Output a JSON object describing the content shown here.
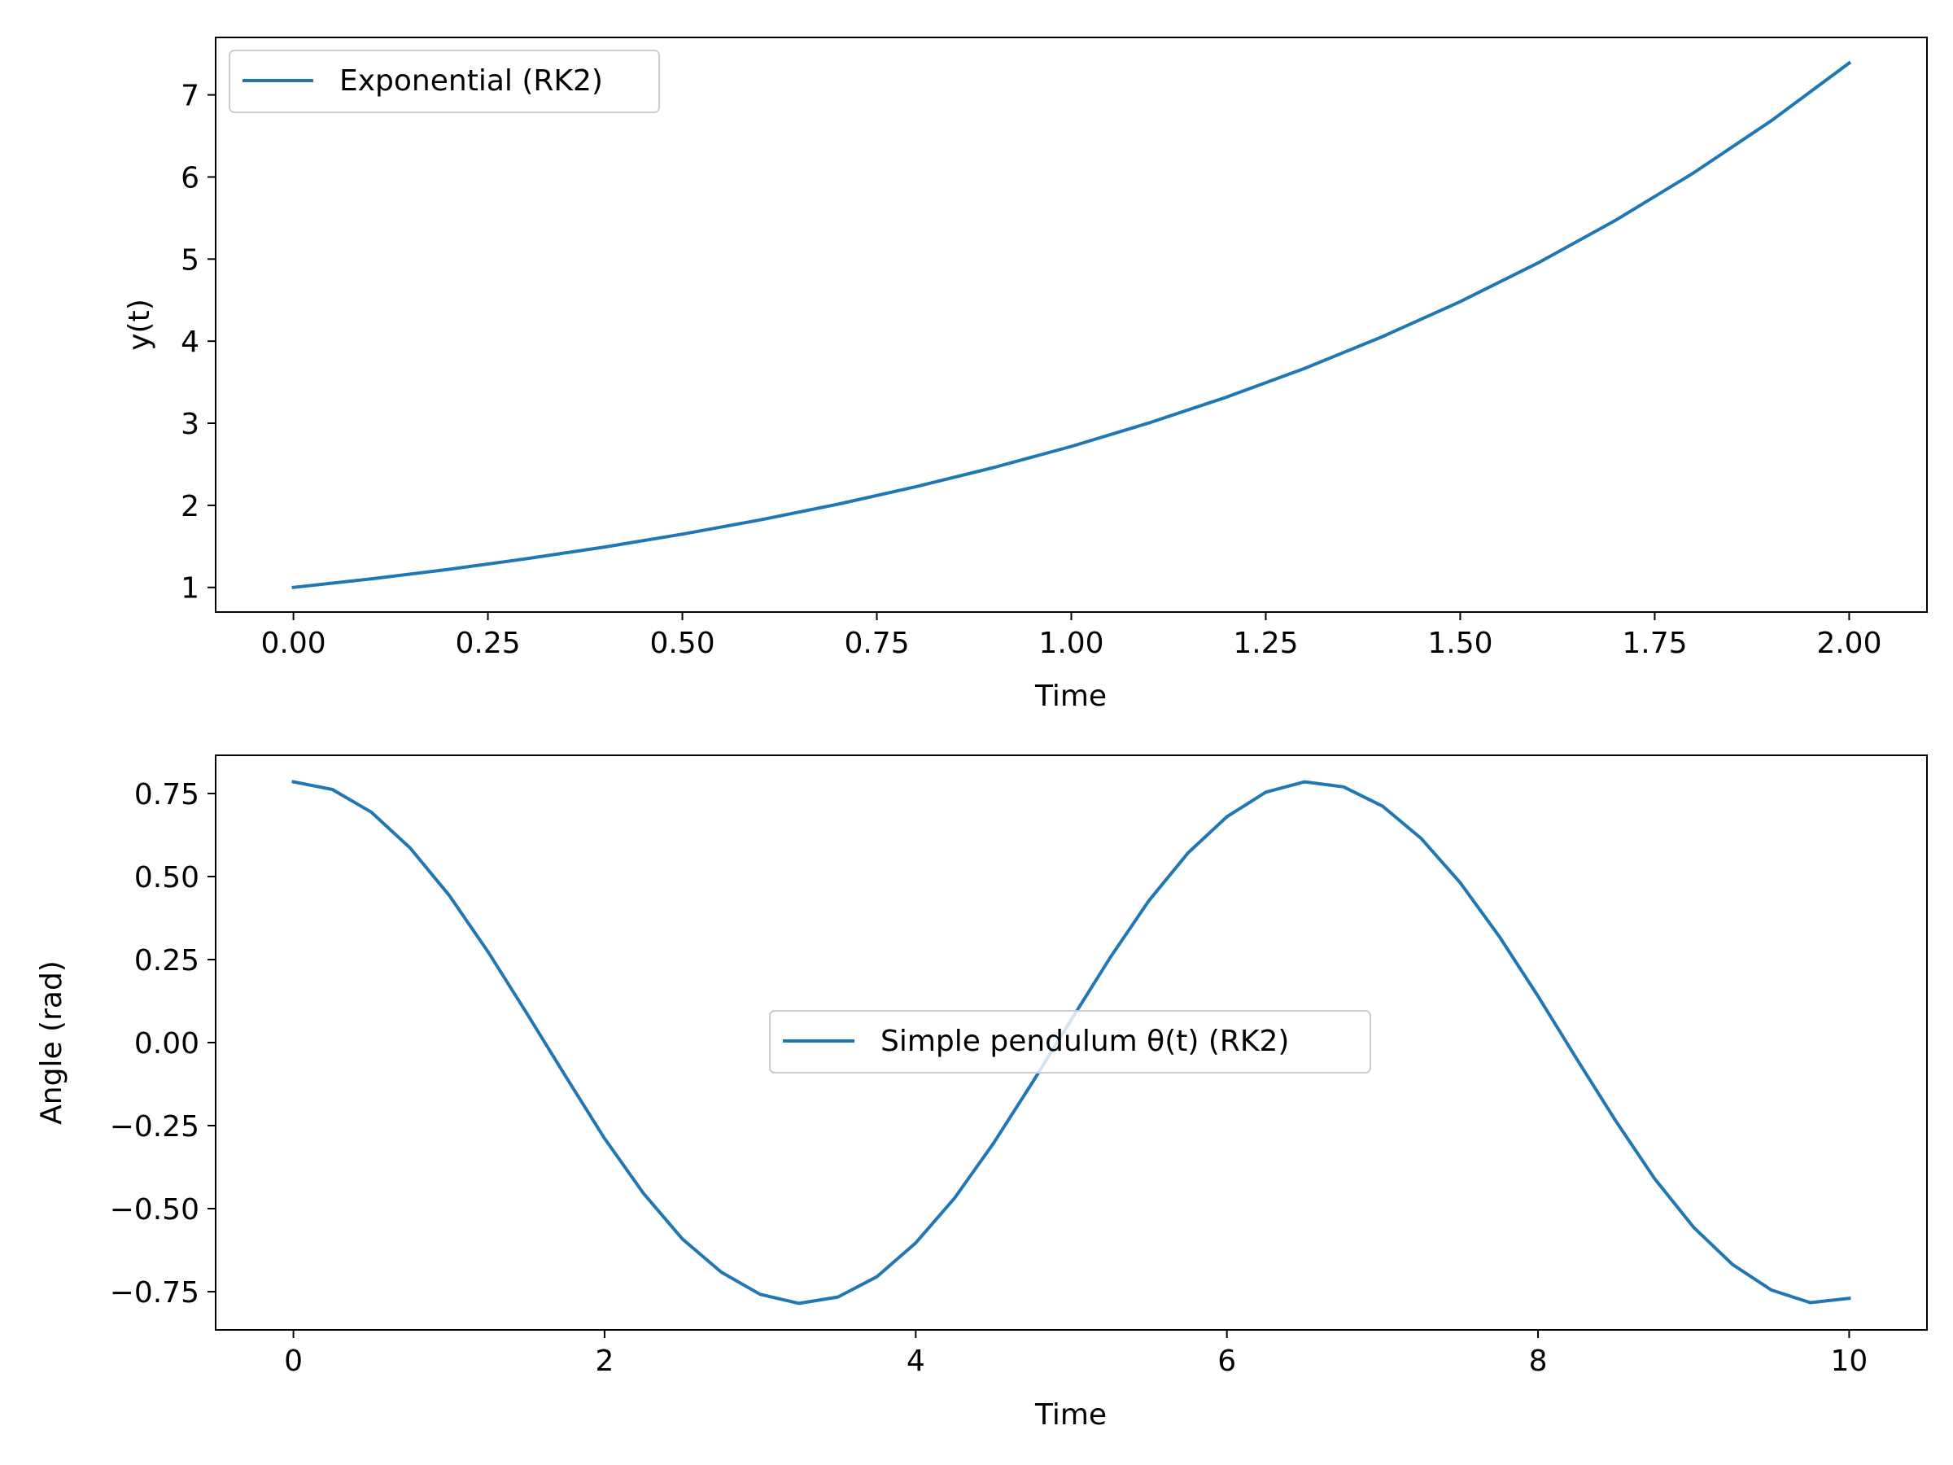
{
  "chart_data": [
    {
      "type": "line",
      "title": "",
      "xlabel": "Time",
      "ylabel": "y(t)",
      "xlim": [
        -0.1,
        2.1
      ],
      "ylim": [
        0.7,
        7.7
      ],
      "xticks": [
        0.0,
        0.25,
        0.5,
        0.75,
        1.0,
        1.25,
        1.5,
        1.75,
        2.0
      ],
      "xtick_labels": [
        "0.00",
        "0.25",
        "0.50",
        "0.75",
        "1.00",
        "1.25",
        "1.50",
        "1.75",
        "2.00"
      ],
      "yticks": [
        1,
        2,
        3,
        4,
        5,
        6,
        7
      ],
      "ytick_labels": [
        "1",
        "2",
        "3",
        "4",
        "5",
        "6",
        "7"
      ],
      "legend_position": "top-left",
      "grid": false,
      "series": [
        {
          "name": "Exponential (RK2)",
          "color": "#1f77b4",
          "x": [
            0.0,
            0.1,
            0.2,
            0.3,
            0.4,
            0.5,
            0.6,
            0.7,
            0.8,
            0.9,
            1.0,
            1.1,
            1.2,
            1.3,
            1.4,
            1.5,
            1.6,
            1.7,
            1.8,
            1.9,
            2.0
          ],
          "y": [
            1.0,
            1.105,
            1.221,
            1.35,
            1.492,
            1.649,
            1.822,
            2.014,
            2.226,
            2.46,
            2.718,
            3.004,
            3.32,
            3.669,
            4.055,
            4.482,
            4.953,
            5.474,
            6.05,
            6.686,
            7.389
          ]
        }
      ]
    },
    {
      "type": "line",
      "title": "",
      "xlabel": "Time",
      "ylabel": "Angle (rad)",
      "xlim": [
        -0.5,
        10.5
      ],
      "ylim": [
        -0.865,
        0.865
      ],
      "xticks": [
        0,
        2,
        4,
        6,
        8,
        10
      ],
      "xtick_labels": [
        "0",
        "2",
        "4",
        "6",
        "8",
        "10"
      ],
      "yticks": [
        0.75,
        0.5,
        0.25,
        0.0,
        -0.25,
        -0.5,
        -0.75
      ],
      "ytick_labels": [
        "0.75",
        "0.50",
        "0.25",
        "0.00",
        "−0.25",
        "−0.50",
        "−0.75"
      ],
      "legend_position": "center",
      "grid": false,
      "series": [
        {
          "name": "Simple pendulum θ(t) (RK2)",
          "color": "#1f77b4",
          "x": [
            0.0,
            0.25,
            0.5,
            0.75,
            1.0,
            1.25,
            1.5,
            1.75,
            2.0,
            2.25,
            2.5,
            2.75,
            3.0,
            3.25,
            3.5,
            3.75,
            4.0,
            4.25,
            4.5,
            4.75,
            5.0,
            5.25,
            5.5,
            5.75,
            6.0,
            6.25,
            6.5,
            6.75,
            7.0,
            7.25,
            7.5,
            7.75,
            8.0,
            8.25,
            8.5,
            8.75,
            9.0,
            9.25,
            9.5,
            9.75,
            10.0
          ],
          "y": [
            0.785,
            0.762,
            0.694,
            0.586,
            0.444,
            0.274,
            0.088,
            -0.102,
            -0.289,
            -0.454,
            -0.591,
            -0.691,
            -0.758,
            -0.785,
            -0.766,
            -0.705,
            -0.603,
            -0.468,
            -0.303,
            -0.12,
            0.069,
            0.256,
            0.428,
            0.571,
            0.68,
            0.754,
            0.785,
            0.77,
            0.712,
            0.614,
            0.481,
            0.32,
            0.14,
            -0.05,
            -0.236,
            -0.41,
            -0.556,
            -0.668,
            -0.745,
            -0.783,
            -0.77
          ]
        }
      ]
    }
  ]
}
